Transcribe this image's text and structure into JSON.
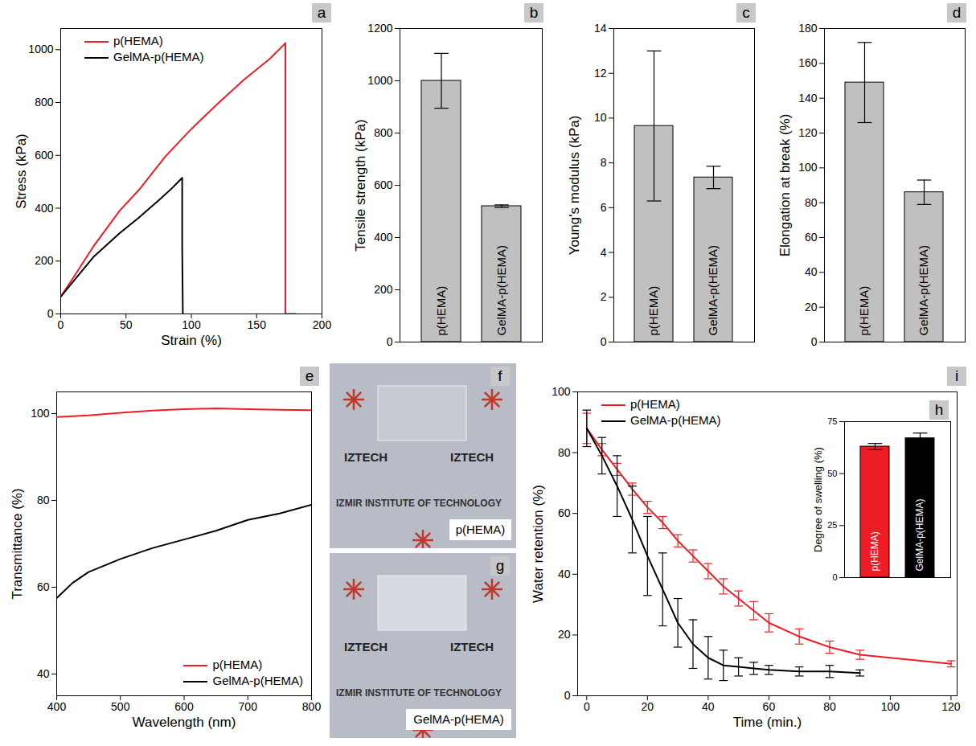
{
  "chart_data": [
    {
      "panel": "a",
      "type": "line",
      "x_label": "Strain (%)",
      "y_label": "Stress (kPa)",
      "xlim": [
        0,
        200
      ],
      "xticks": [
        0,
        50,
        100,
        150,
        200
      ],
      "ylim": [
        0,
        1080
      ],
      "yticks": [
        0,
        200,
        400,
        600,
        800,
        1000
      ],
      "legend": "upper left",
      "series": [
        {
          "name": "p(HEMA)",
          "color": "#ee1c25",
          "x": [
            0,
            10,
            25,
            45,
            60,
            80,
            100,
            120,
            140,
            160,
            172,
            172,
            180
          ],
          "values": [
            65,
            140,
            255,
            390,
            470,
            595,
            700,
            795,
            885,
            965,
            1025,
            0,
            0
          ]
        },
        {
          "name": "GelMA-p(HEMA)",
          "color": "#000000",
          "x": [
            0,
            10,
            25,
            45,
            60,
            75,
            85,
            93,
            93,
            93.5
          ],
          "values": [
            65,
            125,
            215,
            305,
            365,
            430,
            475,
            515,
            255,
            0
          ]
        }
      ]
    },
    {
      "panel": "b",
      "type": "bar",
      "y_label": "Tensile strength (kPa)",
      "categories": [
        "p(HEMA)",
        "GelMA-p(HEMA)"
      ],
      "values": [
        1000,
        520
      ],
      "errors": [
        105,
        5
      ],
      "color": "#c0c0c0",
      "ylim": [
        0,
        1200
      ],
      "yticks": [
        0,
        200,
        400,
        600,
        800,
        1000,
        1200
      ],
      "tick_labels": "y"
    },
    {
      "panel": "c",
      "type": "bar",
      "y_label": "Young's modulus (kPa)",
      "categories": [
        "p(HEMA)",
        "GelMA-p(HEMA)"
      ],
      "values": [
        9.65,
        7.35
      ],
      "errors": [
        3.35,
        0.5
      ],
      "color": "#c0c0c0",
      "ylim": [
        0,
        14
      ],
      "yticks": [
        0,
        2,
        4,
        6,
        8,
        10,
        12,
        14
      ],
      "tick_labels": "y"
    },
    {
      "panel": "d",
      "type": "bar",
      "y_label": "Elongation at break (%)",
      "categories": [
        "p(HEMA)",
        "GelMA-p(HEMA)"
      ],
      "values": [
        149,
        86
      ],
      "errors": [
        23,
        7
      ],
      "color": "#c0c0c0",
      "ylim": [
        0,
        180
      ],
      "yticks": [
        0,
        20,
        40,
        60,
        80,
        100,
        120,
        140,
        160,
        180
      ],
      "tick_labels": "y"
    },
    {
      "panel": "e",
      "type": "line",
      "x_label": "Wavelength (nm)",
      "y_label": "Transmittance (%)",
      "xlim": [
        400,
        800
      ],
      "xticks": [
        400,
        500,
        600,
        700,
        800
      ],
      "ylim": [
        35,
        105
      ],
      "yticks": [
        40,
        60,
        80,
        100
      ],
      "legend": "lower right",
      "series": [
        {
          "name": "p(HEMA)",
          "color": "#ee1c25",
          "x": [
            400,
            425,
            450,
            500,
            550,
            600,
            650,
            700,
            750,
            800
          ],
          "values": [
            99.2,
            99.4,
            99.6,
            100.2,
            100.7,
            101,
            101.2,
            101,
            100.9,
            100.8
          ]
        },
        {
          "name": "GelMA-p(HEMA)",
          "color": "#000000",
          "x": [
            400,
            425,
            450,
            500,
            550,
            600,
            650,
            700,
            750,
            800
          ],
          "values": [
            57.5,
            61,
            63.5,
            66.5,
            69,
            71,
            73,
            75.5,
            77,
            79
          ]
        }
      ]
    },
    {
      "panel": "i",
      "type": "line",
      "x_label": "Time (min.)",
      "y_label": "Water retention (%)",
      "xlim": [
        -3,
        122
      ],
      "xticks": [
        0,
        20,
        40,
        60,
        80,
        100,
        120
      ],
      "ylim": [
        0,
        100
      ],
      "yticks": [
        0,
        20,
        40,
        60,
        80,
        100
      ],
      "legend": "upper left",
      "series": [
        {
          "name": "p(HEMA)",
          "color": "#ee1c25",
          "x": [
            0,
            5,
            10,
            15,
            20,
            25,
            30,
            35,
            40,
            45,
            50,
            55,
            60,
            70,
            80,
            90,
            120
          ],
          "values": [
            88,
            81,
            74.5,
            68,
            62,
            57,
            51,
            46,
            41,
            36,
            32,
            28,
            24,
            19.5,
            16,
            13.5,
            10.5
          ],
          "errors": [
            5,
            2,
            2,
            2,
            2,
            2,
            2,
            2,
            2.5,
            2.5,
            2.5,
            3,
            3,
            2.5,
            2,
            1.5,
            1
          ]
        },
        {
          "name": "GelMA-p(HEMA)",
          "color": "#000000",
          "x": [
            0,
            5,
            10,
            15,
            20,
            25,
            30,
            35,
            40,
            45,
            50,
            55,
            60,
            70,
            80,
            90
          ],
          "values": [
            88,
            79,
            69,
            58,
            46,
            35,
            24,
            17,
            12.5,
            10,
            9.5,
            9,
            8.5,
            8,
            8,
            7.5
          ],
          "errors": [
            6,
            6,
            10,
            11,
            13,
            12,
            8,
            8,
            7,
            5,
            3,
            2,
            1.5,
            1.5,
            2,
            1
          ]
        }
      ]
    },
    {
      "panel": "h",
      "type": "bar",
      "y_label": "Degree of swelling (%)",
      "categories": [
        "p(HEMA)",
        "GelMA-p(HEMA)"
      ],
      "values": [
        63,
        67
      ],
      "errors": [
        1.5,
        2.5
      ],
      "colors": [
        "#ee1c25",
        "#000000"
      ],
      "ylim": [
        0,
        75
      ],
      "yticks": [
        0,
        25,
        50,
        75
      ],
      "tick_labels": "y"
    }
  ],
  "photos": [
    {
      "panel": "f",
      "label": "p(HEMA)",
      "texts": [
        "IZTECH",
        "IZMIR INSTITUTE OF TECHNOLOGY"
      ]
    },
    {
      "panel": "g",
      "label": "GelMA-p(HEMA)",
      "texts": [
        "IZTECH",
        "IZMIR INSTITUTE OF TECHNOLOGY"
      ]
    }
  ]
}
